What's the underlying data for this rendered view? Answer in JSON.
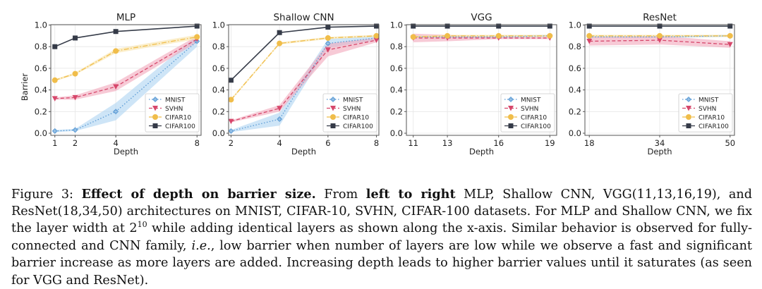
{
  "chart_data": [
    {
      "type": "line",
      "title": "MLP",
      "xlabel": "Depth",
      "ylabel": "Barrier",
      "x": [
        1,
        2,
        4,
        8
      ],
      "xlim": [
        0.8,
        8.2
      ],
      "ylim": [
        0.0,
        1.0
      ],
      "yticks": [
        0.0,
        0.2,
        0.4,
        0.6,
        0.8,
        1.0
      ],
      "xticks": [
        1,
        2,
        4,
        8
      ],
      "grid": true,
      "legend": "lower-right",
      "series": [
        {
          "name": "MNIST",
          "values": [
            0.02,
            0.03,
            0.2,
            0.85
          ],
          "band": [
            0.01,
            0.01,
            0.08,
            0.05
          ]
        },
        {
          "name": "SVHN",
          "values": [
            0.32,
            0.33,
            0.43,
            0.87
          ],
          "band": [
            0.01,
            0.02,
            0.04,
            0.03
          ]
        },
        {
          "name": "CIFAR10",
          "values": [
            0.49,
            0.55,
            0.76,
            0.89
          ],
          "band": [
            0.01,
            0.01,
            0.02,
            0.02
          ]
        },
        {
          "name": "CIFAR100",
          "values": [
            0.8,
            0.88,
            0.94,
            0.99
          ],
          "band": [
            0,
            0,
            0,
            0
          ]
        }
      ]
    },
    {
      "type": "line",
      "title": "Shallow CNN",
      "xlabel": "Depth",
      "ylabel": "",
      "x": [
        2,
        4,
        6,
        8
      ],
      "xlim": [
        1.9,
        8.1
      ],
      "ylim": [
        0.0,
        1.0
      ],
      "yticks": [
        0.0,
        0.2,
        0.4,
        0.6,
        0.8,
        1.0
      ],
      "xticks": [
        2,
        4,
        6,
        8
      ],
      "grid": true,
      "legend": "lower-right",
      "series": [
        {
          "name": "MNIST",
          "values": [
            0.02,
            0.13,
            0.83,
            0.88
          ],
          "band": [
            0.01,
            0.06,
            0.04,
            0.02
          ]
        },
        {
          "name": "SVHN",
          "values": [
            0.11,
            0.23,
            0.77,
            0.86
          ],
          "band": [
            0.01,
            0.03,
            0.06,
            0.02
          ]
        },
        {
          "name": "CIFAR10",
          "values": [
            0.31,
            0.83,
            0.88,
            0.9
          ],
          "band": [
            0.01,
            0.01,
            0.01,
            0.01
          ]
        },
        {
          "name": "CIFAR100",
          "values": [
            0.49,
            0.93,
            0.98,
            0.99
          ],
          "band": [
            0,
            0,
            0,
            0
          ]
        }
      ]
    },
    {
      "type": "line",
      "title": "VGG",
      "xlabel": "Depth",
      "ylabel": "",
      "x": [
        11,
        13,
        16,
        19
      ],
      "xlim": [
        10.6,
        19.4
      ],
      "ylim": [
        0.0,
        1.0
      ],
      "yticks": [
        0.0,
        0.2,
        0.4,
        0.6,
        0.8,
        1.0
      ],
      "xticks": [
        11,
        13,
        16,
        19
      ],
      "grid": true,
      "legend": "lower-right",
      "series": [
        {
          "name": "MNIST",
          "values": [
            0.89,
            0.89,
            0.89,
            0.9
          ],
          "band": [
            0.01,
            0.01,
            0.01,
            0.01
          ]
        },
        {
          "name": "SVHN",
          "values": [
            0.88,
            0.88,
            0.88,
            0.88
          ],
          "band": [
            0.04,
            0.03,
            0.01,
            0.01
          ]
        },
        {
          "name": "CIFAR10",
          "values": [
            0.89,
            0.9,
            0.9,
            0.9
          ],
          "band": [
            0.01,
            0.01,
            0.01,
            0.01
          ]
        },
        {
          "name": "CIFAR100",
          "values": [
            0.99,
            0.99,
            0.99,
            0.99
          ],
          "band": [
            0,
            0,
            0,
            0
          ]
        }
      ]
    },
    {
      "type": "line",
      "title": "ResNet",
      "xlabel": "Depth",
      "ylabel": "",
      "x": [
        18,
        34,
        50
      ],
      "xlim": [
        17.0,
        51.0
      ],
      "ylim": [
        0.0,
        1.0
      ],
      "yticks": [
        0.0,
        0.2,
        0.4,
        0.6,
        0.8,
        1.0
      ],
      "xticks": [
        18,
        34,
        50
      ],
      "grid": true,
      "legend": "lower-right",
      "series": [
        {
          "name": "MNIST",
          "values": [
            0.89,
            0.89,
            0.9
          ],
          "band": [
            0.01,
            0.01,
            0.01
          ]
        },
        {
          "name": "SVHN",
          "values": [
            0.85,
            0.86,
            0.82
          ],
          "band": [
            0.04,
            0.04,
            0.03
          ]
        },
        {
          "name": "CIFAR10",
          "values": [
            0.9,
            0.9,
            0.9
          ],
          "band": [
            0.01,
            0.01,
            0.01
          ]
        },
        {
          "name": "CIFAR100",
          "values": [
            0.99,
            0.99,
            0.99
          ],
          "band": [
            0,
            0,
            0
          ]
        }
      ]
    }
  ],
  "series_styles": {
    "MNIST": {
      "color": "#5b9bd5",
      "band_color": "#aed3f2",
      "marker": "plus-diamond",
      "dash": "dotted"
    },
    "SVHN": {
      "color": "#d6476b",
      "band_color": "#f2a7ba",
      "marker": "triangle-down",
      "dash": "dashed"
    },
    "CIFAR10": {
      "color": "#f0bd4a",
      "band_color": "#f9e2a6",
      "marker": "circle",
      "dash": "dashdot"
    },
    "CIFAR100": {
      "color": "#353b48",
      "band_color": "#9aa0aa",
      "marker": "square",
      "dash": "solid"
    }
  },
  "caption": {
    "label": "Figure 3:",
    "bold_title": "Effect of depth on barrier size.",
    "part1": " From ",
    "bold_dir": "left to right",
    "part2": " MLP, Shallow CNN, VGG(11,13,16,19), and ResNet(18,34,50) architectures on MNIST, CIFAR-10, SVHN, CIFAR-100 datasets. For MLP and Shallow CNN, we fix the layer width at 2",
    "sup": "10",
    "part3": " while adding identical layers as shown along the x-axis. Similar behavior is observed for fully-connected and CNN family, ",
    "italic_ie": "i.e.",
    "part4": ", low barrier when number of layers are low while we observe a fast and significant barrier increase as more layers are added. Increasing depth leads to higher barrier values until it saturates (as seen for VGG and ResNet)."
  }
}
